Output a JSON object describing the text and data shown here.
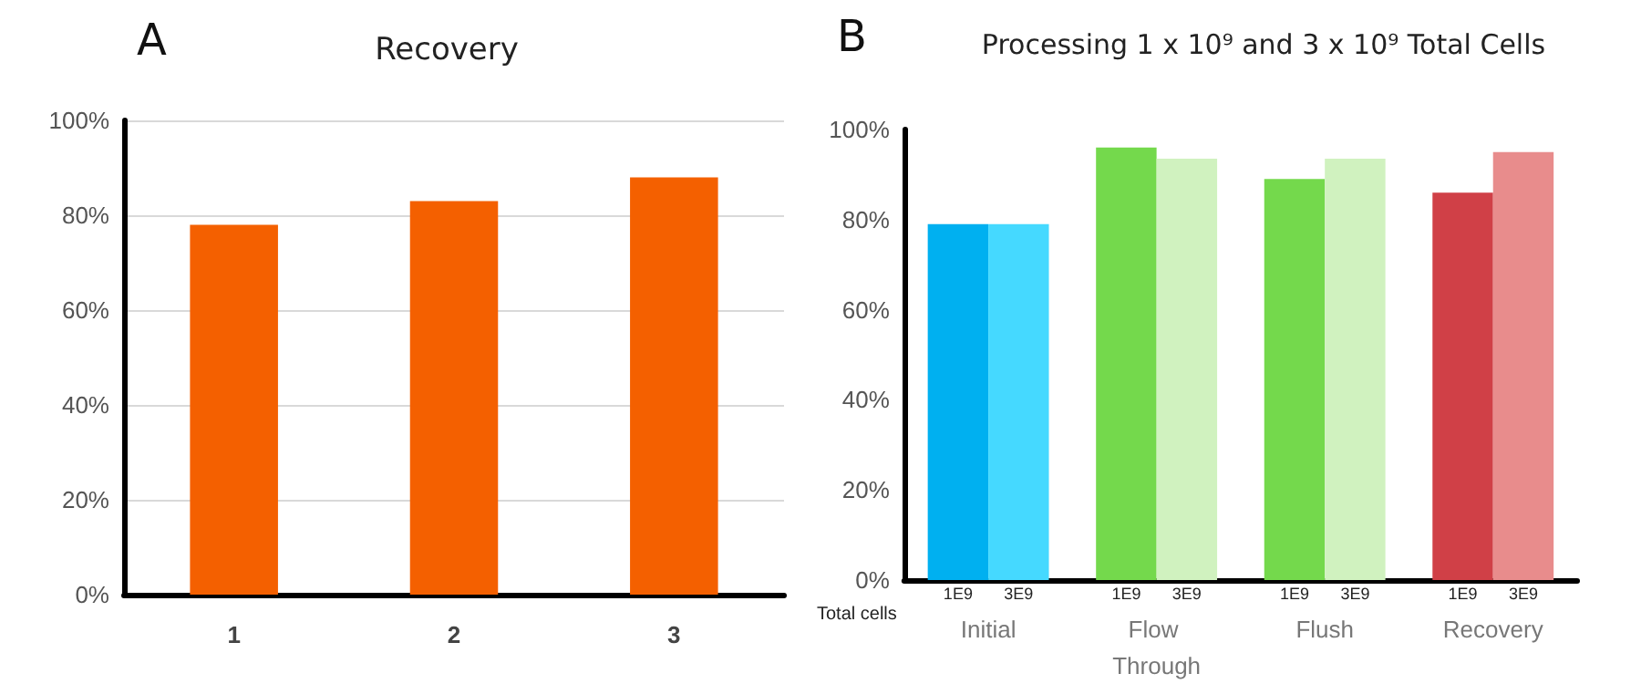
{
  "chart_data": [
    {
      "type": "bar",
      "title": "Recovery",
      "annotations": [
        "A"
      ],
      "categories": [
        "1",
        "2",
        "3"
      ],
      "values": [
        78,
        83,
        88
      ],
      "color": "#f46000",
      "ylim": [
        0,
        100
      ],
      "yticks": [
        {
          "value": 0,
          "label": "0%"
        },
        {
          "value": 20,
          "label": "20%"
        },
        {
          "value": 40,
          "label": "40%"
        },
        {
          "value": 60,
          "label": "60%"
        },
        {
          "value": 80,
          "label": "80%"
        },
        {
          "value": 100,
          "label": "100%"
        }
      ],
      "grid": "y",
      "legend": false
    },
    {
      "type": "bar",
      "title": "Processing 1 x 10⁹ and 3 x 10⁹ Total Cells",
      "annotations": [
        "B"
      ],
      "xlabel": "Total cells",
      "categories": [
        "Initial",
        "Flow Through",
        "Flush",
        "Recovery"
      ],
      "series": [
        {
          "name": "1E9",
          "colors": [
            "#00b0f0",
            "#74d94c",
            "#74d94c",
            "#d04047"
          ],
          "values": [
            79,
            96,
            89,
            86
          ]
        },
        {
          "name": "3E9",
          "colors": [
            "#45d9ff",
            "#d0f2bf",
            "#d0f2bf",
            "#e88c8c"
          ],
          "values": [
            79,
            93.5,
            93.5,
            95
          ]
        }
      ],
      "ylim": [
        0,
        100
      ],
      "yticks": [
        {
          "value": 0,
          "label": "0%"
        },
        {
          "value": 20,
          "label": "20%"
        },
        {
          "value": 40,
          "label": "40%"
        },
        {
          "value": 60,
          "label": "60%"
        },
        {
          "value": 80,
          "label": "80%"
        },
        {
          "value": 100,
          "label": "100%"
        }
      ],
      "grid": false,
      "legend": false
    }
  ]
}
